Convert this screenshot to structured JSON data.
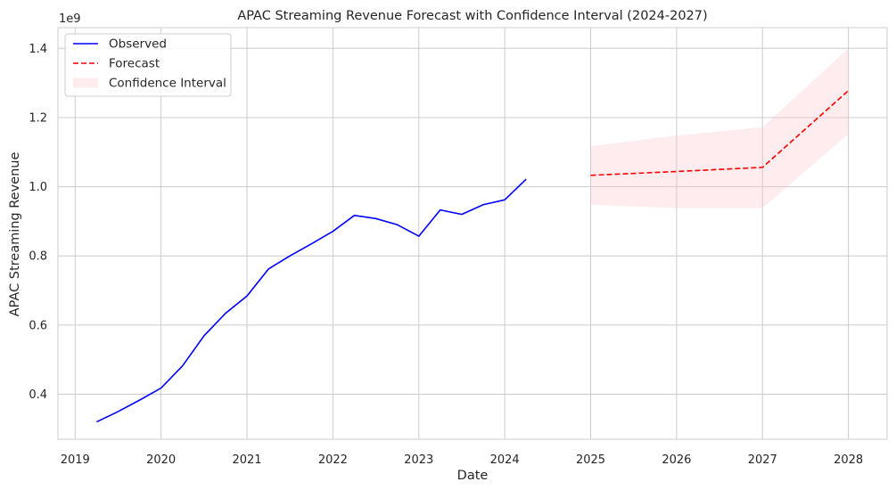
{
  "chart_data": {
    "type": "line",
    "title": "APAC Streaming Revenue Forecast with Confidence Interval (2024-2027)",
    "xlabel": "Date",
    "ylabel": "APAC Streaming Revenue",
    "y_offset_label": "1e9",
    "xlim": [
      2018.8,
      2028.45
    ],
    "ylim": [
      0.27,
      1.46
    ],
    "x_ticks": [
      2019,
      2020,
      2021,
      2022,
      2023,
      2024,
      2025,
      2026,
      2027,
      2028
    ],
    "x_tick_labels": [
      "2019",
      "2020",
      "2021",
      "2022",
      "2023",
      "2024",
      "2025",
      "2026",
      "2027",
      "2028"
    ],
    "y_ticks": [
      0.4,
      0.6,
      0.8,
      1.0,
      1.2,
      1.4
    ],
    "y_tick_labels": [
      "0.4",
      "0.6",
      "0.8",
      "1.0",
      "1.2",
      "1.4"
    ],
    "grid": true,
    "legend_position": "top-left",
    "series": [
      {
        "name": "Observed",
        "kind": "line",
        "color": "#0000ff",
        "dash": "solid",
        "x": [
          2019.25,
          2019.5,
          2019.75,
          2020.0,
          2020.25,
          2020.5,
          2020.75,
          2021.0,
          2021.25,
          2021.5,
          2021.75,
          2022.0,
          2022.25,
          2022.5,
          2022.75,
          2023.0,
          2023.25,
          2023.5,
          2023.75,
          2024.0,
          2024.25
        ],
        "y": [
          0.32,
          0.35,
          0.383,
          0.418,
          0.482,
          0.569,
          0.634,
          0.684,
          0.762,
          0.8,
          0.835,
          0.871,
          0.917,
          0.908,
          0.89,
          0.857,
          0.933,
          0.92,
          0.948,
          0.962,
          1.022
        ]
      },
      {
        "name": "Forecast",
        "kind": "line",
        "color": "#ff0000",
        "dash": "dashed",
        "x": [
          2025,
          2026,
          2027,
          2028
        ],
        "y": [
          1.033,
          1.044,
          1.056,
          1.278
        ]
      },
      {
        "name": "Confidence Interval",
        "kind": "band",
        "color": "#ffc0cb",
        "x": [
          2025,
          2026,
          2027,
          2028
        ],
        "lower": [
          0.948,
          0.938,
          0.938,
          1.153
        ],
        "upper": [
          1.117,
          1.148,
          1.172,
          1.4
        ]
      }
    ]
  }
}
